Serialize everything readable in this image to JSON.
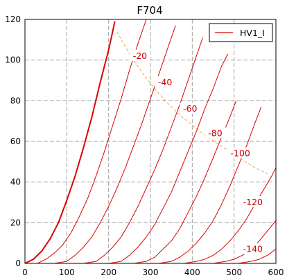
{
  "chart_data": {
    "type": "line",
    "title": "F704",
    "xlabel": "",
    "ylabel": "",
    "xlim": [
      0,
      600
    ],
    "ylim": [
      0,
      120
    ],
    "xticks": [
      0,
      100,
      200,
      300,
      400,
      500,
      600
    ],
    "yticks": [
      0,
      20,
      40,
      60,
      80,
      100,
      120
    ],
    "grid": true,
    "legend": {
      "position": "top-right",
      "entries": [
        "HV1_I"
      ]
    },
    "colors": {
      "curves": "#dd0000",
      "limit": "#f0a830",
      "grid": "#a0a0a0"
    },
    "series": [
      {
        "grid_v": 0,
        "points": [
          [
            0,
            0
          ],
          [
            20,
            2
          ],
          [
            40,
            6
          ],
          [
            60,
            12
          ],
          [
            80,
            20
          ],
          [
            100,
            31
          ],
          [
            120,
            43
          ],
          [
            140,
            57
          ],
          [
            160,
            72
          ],
          [
            180,
            89
          ],
          [
            200,
            105
          ],
          [
            215,
            119
          ]
        ]
      },
      {
        "grid_v": -20,
        "points": [
          [
            30,
            0
          ],
          [
            50,
            2
          ],
          [
            70,
            5
          ],
          [
            90,
            9
          ],
          [
            110,
            15
          ],
          [
            130,
            23
          ],
          [
            150,
            32
          ],
          [
            170,
            43
          ],
          [
            190,
            55
          ],
          [
            210,
            68
          ],
          [
            230,
            81
          ],
          [
            250,
            95
          ],
          [
            270,
            108
          ],
          [
            290,
            120
          ]
        ]
      },
      {
        "grid_v": -40,
        "points": [
          [
            70,
            0
          ],
          [
            100,
            1
          ],
          [
            120,
            4
          ],
          [
            140,
            8
          ],
          [
            160,
            13
          ],
          [
            180,
            20
          ],
          [
            200,
            28
          ],
          [
            220,
            37
          ],
          [
            240,
            47
          ],
          [
            260,
            58
          ],
          [
            280,
            69
          ],
          [
            300,
            81
          ],
          [
            320,
            93
          ],
          [
            340,
            105
          ],
          [
            360,
            117
          ]
        ]
      },
      {
        "grid_v": -60,
        "points": [
          [
            140,
            0
          ],
          [
            170,
            1
          ],
          [
            190,
            4
          ],
          [
            210,
            8
          ],
          [
            230,
            13
          ],
          [
            250,
            20
          ],
          [
            270,
            28
          ],
          [
            290,
            37
          ],
          [
            310,
            46
          ],
          [
            330,
            56
          ],
          [
            350,
            67
          ],
          [
            370,
            78
          ],
          [
            390,
            90
          ],
          [
            410,
            102
          ],
          [
            425,
            111
          ]
        ]
      },
      {
        "grid_v": -80,
        "points": [
          [
            200,
            0
          ],
          [
            230,
            1
          ],
          [
            250,
            4
          ],
          [
            270,
            8
          ],
          [
            290,
            13
          ],
          [
            310,
            19
          ],
          [
            330,
            27
          ],
          [
            350,
            35
          ],
          [
            370,
            45
          ],
          [
            390,
            55
          ],
          [
            410,
            65
          ],
          [
            430,
            76
          ],
          [
            450,
            86
          ],
          [
            470,
            97
          ],
          [
            485,
            103
          ]
        ]
      },
      {
        "grid_v": -100,
        "points": [
          [
            260,
            0
          ],
          [
            290,
            1
          ],
          [
            310,
            3
          ],
          [
            330,
            7
          ],
          [
            350,
            11
          ],
          [
            370,
            17
          ],
          [
            390,
            25
          ],
          [
            410,
            33
          ],
          [
            430,
            42
          ],
          [
            450,
            52
          ],
          [
            470,
            62
          ],
          [
            490,
            72
          ],
          [
            505,
            80
          ]
        ]
      },
      {
        "grid_v": -120,
        "points": [
          [
            320,
            0
          ],
          [
            350,
            1
          ],
          [
            370,
            3
          ],
          [
            390,
            6
          ],
          [
            410,
            10
          ],
          [
            430,
            15
          ],
          [
            450,
            21
          ],
          [
            470,
            29
          ],
          [
            490,
            38
          ],
          [
            510,
            48
          ],
          [
            530,
            58
          ],
          [
            550,
            69
          ],
          [
            565,
            77
          ]
        ]
      },
      {
        "grid_v": -140,
        "points": [
          [
            380,
            0
          ],
          [
            410,
            1
          ],
          [
            430,
            2
          ],
          [
            450,
            4
          ],
          [
            470,
            7
          ],
          [
            490,
            11
          ],
          [
            510,
            16
          ],
          [
            530,
            22
          ],
          [
            550,
            29
          ],
          [
            570,
            36
          ],
          [
            590,
            43
          ],
          [
            605,
            49
          ]
        ]
      },
      {
        "grid_v": -160,
        "points": [
          [
            450,
            0
          ],
          [
            480,
            1
          ],
          [
            500,
            2
          ],
          [
            520,
            4
          ],
          [
            540,
            7
          ],
          [
            560,
            11
          ],
          [
            580,
            16
          ],
          [
            600,
            21
          ]
        ]
      },
      {
        "grid_v": -180,
        "points": [
          [
            510,
            0
          ],
          [
            540,
            1
          ],
          [
            560,
            2
          ],
          [
            580,
            4
          ],
          [
            600,
            7
          ]
        ]
      }
    ],
    "curve_labels": [
      {
        "text": "-20",
        "x": 275,
        "y": 102
      },
      {
        "text": "-40",
        "x": 335,
        "y": 89
      },
      {
        "text": "-60",
        "x": 395,
        "y": 76
      },
      {
        "text": "-80",
        "x": 455,
        "y": 64
      },
      {
        "text": "-100",
        "x": 515,
        "y": 54
      },
      {
        "text": "-120",
        "x": 545,
        "y": 30
      },
      {
        "text": "-140",
        "x": 545,
        "y": 7
      }
    ],
    "max_dissipation_curve": {
      "points": [
        [
          220,
          114
        ],
        [
          250,
          103
        ],
        [
          280,
          94
        ],
        [
          310,
          86
        ],
        [
          340,
          79
        ],
        [
          370,
          73
        ],
        [
          400,
          68
        ],
        [
          430,
          63
        ],
        [
          460,
          59
        ],
        [
          490,
          55
        ],
        [
          520,
          51
        ],
        [
          550,
          47
        ],
        [
          580,
          44
        ]
      ]
    }
  }
}
